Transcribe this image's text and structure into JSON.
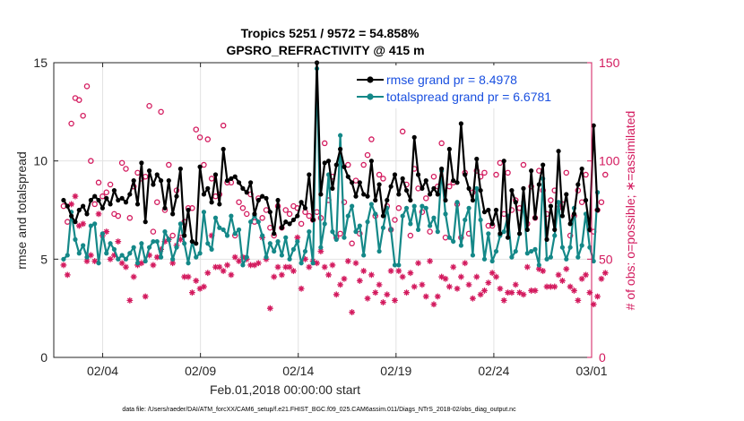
{
  "chart_data": {
    "type": "line",
    "title": "Tropics 5251 / 9572 = 54.858%",
    "subtitle": "GPSRO_REFRACTIVITY @ 415 m",
    "xlabel": "Feb.01,2018 00:00:00 start",
    "ylabel": "rmse and totalspread",
    "y2label": "# of obs: o=possible; ∗=assimilated",
    "footnote": "data file: /Users/raeder/DAI/ATM_forcXX/CAM6_setup/f.e21.FHIST_BGC.f09_025.CAM6assim.011/Diags_NTrS_2018-02/obs_diag_output.nc",
    "x_ticks": [
      "02/04",
      "02/09",
      "02/14",
      "02/19",
      "02/24",
      "03/01"
    ],
    "x_tick_days": [
      3,
      8,
      13,
      18,
      23,
      28
    ],
    "xlim": [
      0.5,
      28.0
    ],
    "ylim": [
      0,
      15
    ],
    "y_ticks": [
      "0",
      "5",
      "10",
      "15"
    ],
    "y2lim": [
      0,
      150
    ],
    "y2_ticks": [
      "0",
      "50",
      "100",
      "150"
    ],
    "grid": true,
    "legend_position": "top-right",
    "colors": {
      "rmse": "#000000",
      "spread": "#148888",
      "obs": "#d31a5e",
      "legend_text": "#1a50e0"
    },
    "series": [
      {
        "name": "rmse grand pr = 8.4978",
        "axis": "left",
        "values": [
          8.0,
          7.7,
          7.2,
          6.9,
          7.5,
          7.7,
          7.3,
          8.0,
          8.2,
          8.0,
          7.6,
          8.1,
          7.8,
          8.5,
          8.0,
          8.1,
          7.9,
          8.3,
          9.0,
          7.8,
          9.9,
          6.9,
          9.5,
          8.8,
          9.3,
          9.0,
          7.6,
          9.0,
          7.3,
          8.2,
          9.6,
          6.2,
          7.5,
          5.9,
          5.8,
          9.7,
          8.3,
          8.6,
          7.9,
          9.3,
          7.8,
          10.6,
          9.0,
          9.1,
          9.2,
          8.9,
          8.6,
          8.4,
          8.9,
          7.3,
          8.0,
          8.2,
          8.1,
          7.4,
          6.3,
          8.0,
          6.6,
          6.9,
          6.8,
          7.0,
          7.2,
          7.9,
          7.6,
          9.3,
          7.0,
          15.0,
          8.3,
          9.9,
          10.0,
          8.6,
          9.8,
          10.6,
          9.7,
          9.2,
          8.9,
          8.2,
          8.9,
          8.3,
          8.2,
          10.0,
          8.0,
          8.8,
          7.2,
          8.0,
          8.7,
          9.3,
          8.3,
          9.1,
          8.5,
          8.0,
          11.2,
          9.3,
          8.6,
          9.0,
          8.3,
          8.6,
          8.3,
          9.6,
          8.0,
          10.6,
          9.0,
          8.9,
          11.9,
          9.3,
          8.6,
          8.0,
          10.1,
          8.5,
          7.4,
          7.5,
          6.8,
          7.5,
          6.3,
          10.0,
          6.1,
          8.5,
          7.9,
          6.3,
          8.6,
          6.5,
          9.5,
          7.1,
          8.8,
          9.8,
          6.0,
          7.7,
          6.5,
          10.5,
          7.2,
          8.3,
          6.8,
          7.3,
          8.8,
          9.6,
          8.0,
          6.5,
          11.8,
          7.5
        ]
      },
      {
        "name": "totalspread grand pr = 6.6781",
        "axis": "left",
        "values": [
          5.0,
          5.2,
          7.4,
          6.0,
          5.3,
          5.7,
          5.1,
          6.7,
          6.8,
          4.8,
          6.3,
          5.3,
          5.8,
          5.5,
          5.0,
          5.2,
          5.0,
          5.3,
          5.6,
          4.8,
          5.8,
          4.9,
          5.6,
          5.9,
          5.9,
          5.1,
          6.4,
          6.0,
          5.0,
          5.6,
          6.8,
          5.8,
          4.8,
          5.9,
          5.1,
          5.3,
          7.4,
          5.8,
          5.5,
          7.1,
          6.6,
          6.5,
          6.2,
          7.2,
          6.3,
          6.5,
          4.7,
          5.1,
          6.9,
          7.2,
          6.9,
          6.2,
          5.1,
          5.8,
          5.4,
          5.9,
          5.2,
          6.1,
          5.0,
          5.5,
          5.9,
          4.8,
          5.4,
          6.4,
          4.8,
          14.7,
          5.6,
          6.8,
          9.3,
          6.4,
          6.0,
          11.3,
          6.1,
          7.2,
          7.7,
          6.4,
          6.7,
          5.2,
          6.9,
          7.8,
          7.3,
          5.4,
          6.6,
          7.6,
          6.5,
          4.7,
          4.7,
          7.2,
          7.6,
          6.8,
          7.7,
          6.5,
          7.7,
          7.6,
          6.7,
          7.1,
          6.4,
          9.5,
          7.3,
          6.1,
          5.9,
          7.9,
          5.7,
          7.0,
          7.6,
          5.2,
          8.6,
          7.0,
          5.0,
          6.3,
          4.9,
          5.4,
          6.2,
          6.4,
          7.2,
          5.1,
          5.4,
          6.3,
          7.9,
          5.3,
          5.4,
          5.5,
          4.7,
          9.1,
          5.0,
          5.1,
          6.2,
          7.9,
          5.6,
          5.0,
          5.6,
          7.6,
          5.1,
          5.7,
          7.3,
          5.6,
          4.9,
          8.4
        ]
      },
      {
        "name": "possible obs",
        "axis": "right",
        "marker": "circle",
        "values": [
          77,
          69,
          119,
          132,
          131,
          123,
          138,
          100,
          78,
          89,
          82,
          84,
          88,
          73,
          72,
          99,
          96,
          71,
          87,
          94,
          91,
          92,
          128,
          64,
          79,
          125,
          75,
          98,
          62,
          85,
          61,
          69,
          76,
          76,
          116,
          112,
          98,
          111,
          91,
          82,
          83,
          118,
          89,
          89,
          62,
          79,
          76,
          73,
          83,
          69,
          81,
          71,
          75,
          66,
          62,
          77,
          66,
          75,
          73,
          77,
          76,
          68,
          74,
          72,
          70,
          74,
          71,
          109,
          80,
          92,
          61,
          63,
          79,
          98,
          58,
          90,
          63,
          98,
          103,
          111,
          72,
          93,
          91,
          77,
          65,
          70,
          76,
          115,
          88,
          62,
          96,
          86,
          74,
          81,
          64,
          92,
          87,
          109,
          61,
          87,
          89,
          78,
          61,
          94,
          63,
          84,
          95,
          92,
          94,
          67,
          67,
          93,
          99,
          73,
          94,
          75,
          80,
          76,
          98,
          68,
          87,
          71,
          95,
          85,
          73,
          80,
          85,
          76,
          78,
          94,
          62,
          72,
          85,
          79,
          93,
          65,
          64,
          75,
          79,
          93
        ]
      },
      {
        "name": "assimilated obs",
        "axis": "right",
        "marker": "asterisk",
        "values": [
          47,
          42,
          78,
          82,
          67,
          68,
          49,
          52,
          49,
          73,
          62,
          64,
          50,
          52,
          59,
          48,
          46,
          29,
          41,
          47,
          48,
          31,
          52,
          47,
          51,
          55,
          59,
          60,
          48,
          57,
          60,
          41,
          41,
          33,
          39,
          35,
          36,
          43,
          62,
          46,
          46,
          44,
          47,
          42,
          51,
          49,
          51,
          50,
          47,
          47,
          48,
          61,
          50,
          25,
          41,
          46,
          42,
          46,
          46,
          44,
          61,
          35,
          50,
          46,
          49,
          48,
          54,
          46,
          42,
          47,
          32,
          37,
          40,
          49,
          23,
          48,
          39,
          44,
          30,
          42,
          33,
          37,
          28,
          32,
          44,
          29,
          44,
          41,
          33,
          43,
          36,
          48,
          37,
          31,
          49,
          27,
          31,
          41,
          40,
          36,
          46,
          35,
          41,
          48,
          37,
          30,
          41,
          32,
          34,
          38,
          43,
          41,
          35,
          29,
          33,
          33,
          37,
          33,
          32,
          46,
          34,
          34,
          45,
          44,
          36,
          36,
          36,
          42,
          39,
          45,
          36,
          34,
          29,
          40,
          42,
          33,
          27,
          31,
          40,
          43
        ]
      }
    ]
  }
}
